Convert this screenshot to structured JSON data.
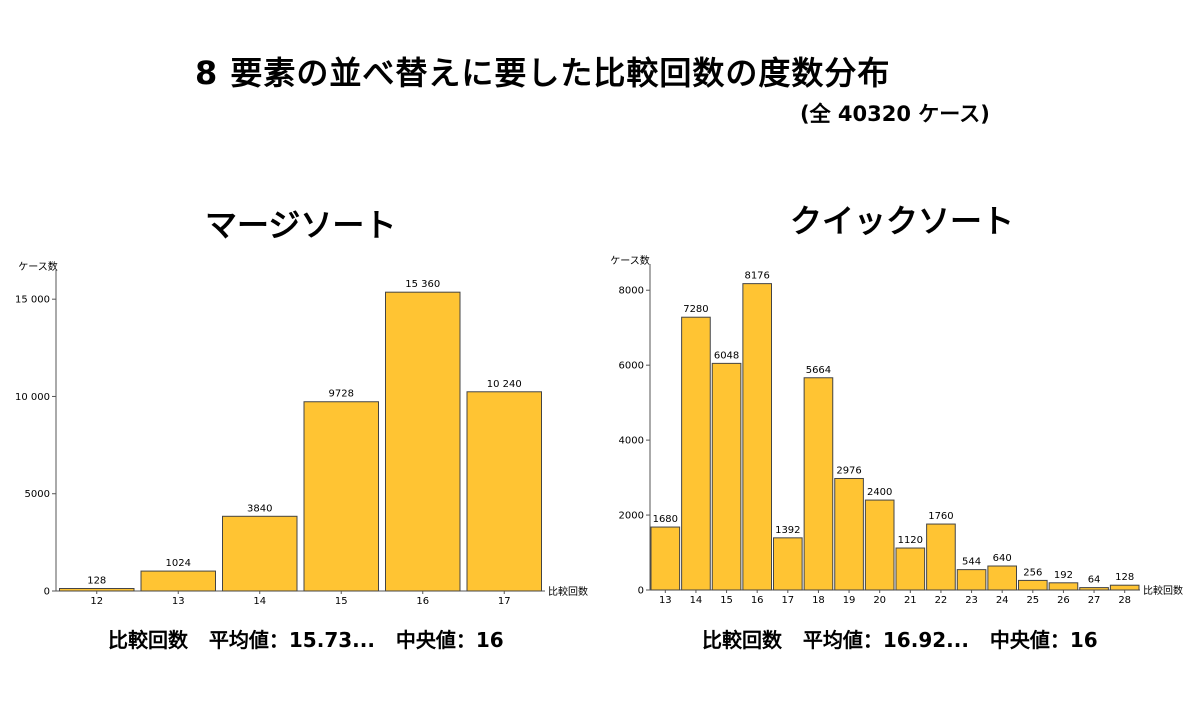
{
  "title": "8 要素の並べ替えに要した比較回数の度数分布",
  "subtitle": "(全 40320 ケース)",
  "colors": {
    "bar": "#ffc433",
    "bar_edge": "#444444"
  },
  "chart_data": [
    {
      "type": "bar",
      "title": "マージソート",
      "xlabel": "比較回数",
      "ylabel": "ケース数",
      "categories": [
        "12",
        "13",
        "14",
        "15",
        "16",
        "17"
      ],
      "values": [
        128,
        1024,
        3840,
        9728,
        15360,
        10240
      ],
      "value_labels": [
        "128",
        "1024",
        "3840",
        "9728",
        "15 360",
        "10 240"
      ],
      "yticks": [
        0,
        5000,
        10000,
        15000
      ],
      "ytick_labels": [
        "0",
        "5000",
        "10 000",
        "15 000"
      ],
      "ylim": [
        0,
        16500
      ],
      "stats": {
        "label": "比較回数",
        "mean_label": "平均値：15.73...",
        "median_label": "中央値：16"
      }
    },
    {
      "type": "bar",
      "title": "クイックソート",
      "xlabel": "比較回数",
      "ylabel": "ケース数",
      "categories": [
        "13",
        "14",
        "15",
        "16",
        "17",
        "18",
        "19",
        "20",
        "21",
        "22",
        "23",
        "24",
        "25",
        "26",
        "27",
        "28"
      ],
      "values": [
        1680,
        7280,
        6048,
        8176,
        1392,
        5664,
        2976,
        2400,
        1120,
        1760,
        544,
        640,
        256,
        192,
        64,
        128
      ],
      "value_labels": [
        "1680",
        "7280",
        "6048",
        "8176",
        "1392",
        "5664",
        "2976",
        "2400",
        "1120",
        "1760",
        "544",
        "640",
        "256",
        "192",
        "64",
        "128"
      ],
      "yticks": [
        0,
        2000,
        4000,
        6000,
        8000
      ],
      "ytick_labels": [
        "0",
        "2000",
        "4000",
        "6000",
        "8000"
      ],
      "ylim": [
        0,
        8700
      ],
      "stats": {
        "label": "比較回数",
        "mean_label": "平均値：16.92...",
        "median_label": "中央値：16"
      }
    }
  ]
}
